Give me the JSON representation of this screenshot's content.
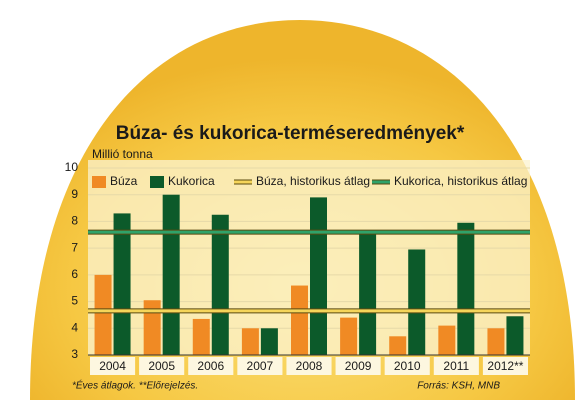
{
  "chart_data": {
    "type": "bar",
    "title": "Búza- és kukorica-terméseredmények*",
    "y_label": "Millió tonna",
    "categories": [
      "2004",
      "2005",
      "2006",
      "2007",
      "2008",
      "2009",
      "2010",
      "2011",
      "2012**"
    ],
    "series": [
      {
        "name": "Búza",
        "color": "#f08a24",
        "values": [
          6.0,
          5.05,
          4.35,
          4.0,
          5.6,
          4.4,
          3.7,
          4.1,
          4.0
        ]
      },
      {
        "name": "Kukorica",
        "color": "#0c5a2a",
        "values": [
          8.3,
          9.0,
          8.25,
          4.0,
          8.9,
          7.55,
          6.95,
          7.95,
          4.45
        ]
      }
    ],
    "reference_lines": [
      {
        "name": "Búza, historikus átlag",
        "color": "#f5d55a",
        "value": 4.65
      },
      {
        "name": "Kukorica, historikus átlag",
        "color": "#2fa36a",
        "value": 7.6
      }
    ],
    "ylim": [
      3,
      10
    ],
    "yticks": [
      3,
      4,
      5,
      6,
      7,
      8,
      9,
      10
    ],
    "grid": true,
    "footnote": "*Éves átlagok. **Előrejelzés.",
    "source": "Forrás: KSH, MNB"
  }
}
